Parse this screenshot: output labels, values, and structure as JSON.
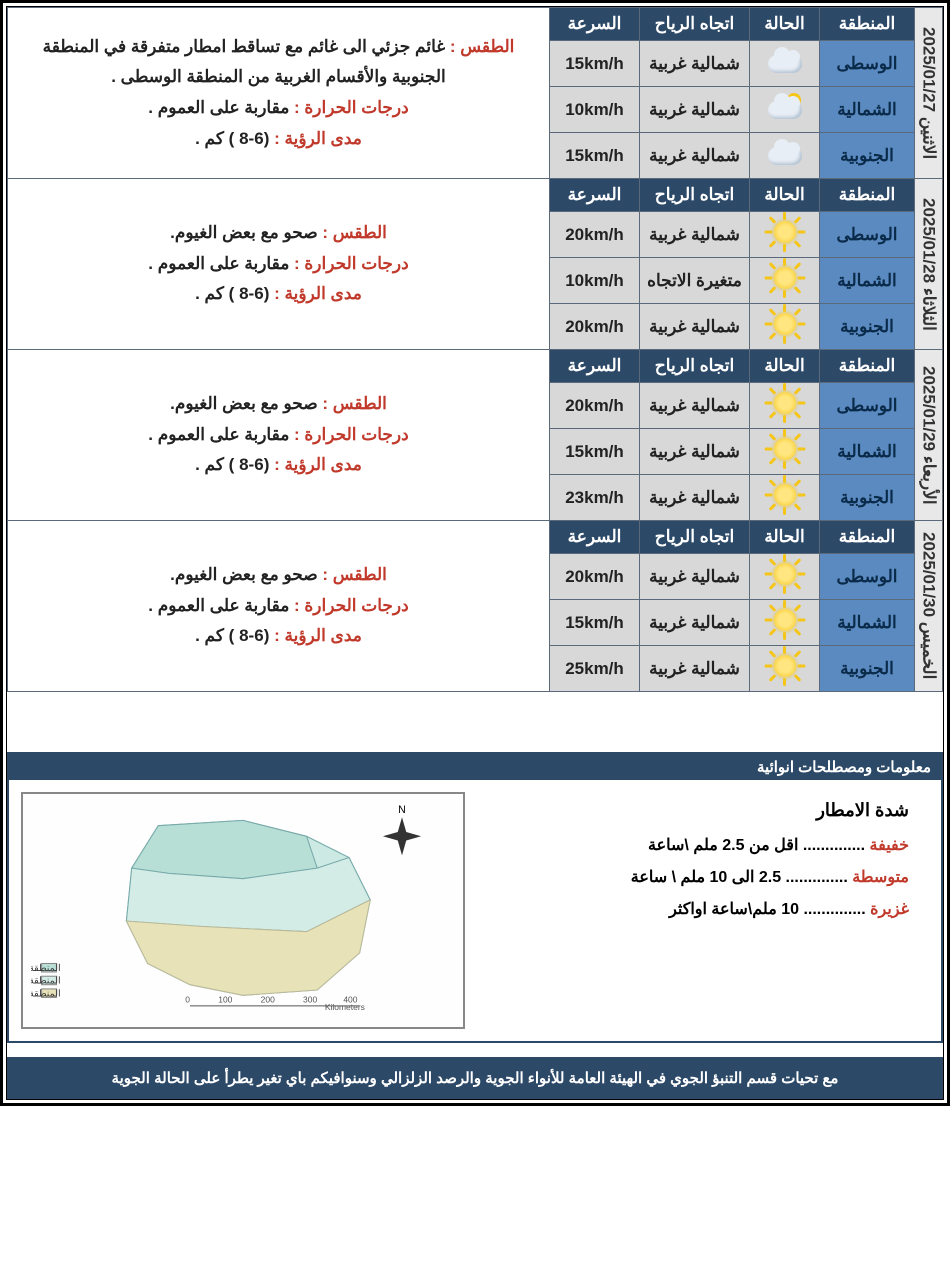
{
  "colors": {
    "header_bg": "#2c4968",
    "header_text": "#ffffff",
    "region_bg": "#5a8abf",
    "region_text": "#0a2a4a",
    "data_bg": "#d8d8d8",
    "label_red": "#c0392b",
    "border": "#5a6a7a"
  },
  "table_headers": {
    "region": "المنطقة",
    "condition": "الحالة",
    "wind_dir": "اتجاه الرياح",
    "speed": "السرعة"
  },
  "desc_labels": {
    "weather": "الطقس :",
    "temp": "درجات الحرارة :",
    "visibility": "مدى الرؤية :"
  },
  "days": [
    {
      "date_label": "الاثنين 2025/01/27",
      "rows": [
        {
          "region": "الوسطى",
          "icon": "cloud",
          "wind": "شمالية غربية",
          "speed": "15km/h"
        },
        {
          "region": "الشمالية",
          "icon": "partly",
          "wind": "شمالية غربية",
          "speed": "10km/h"
        },
        {
          "region": "الجنوبية",
          "icon": "cloud",
          "wind": "شمالية غربية",
          "speed": "15km/h"
        }
      ],
      "weather": "غائم جزئي الى غائم  مع تساقط امطار متفرقة في المنطقة الجنوبية والأقسام الغربية من المنطقة الوسطى .",
      "temp": "مقاربة على العموم .",
      "visibility": "(6-8 ) كم ."
    },
    {
      "date_label": "الثلاثاء 2025/01/28",
      "rows": [
        {
          "region": "الوسطى",
          "icon": "sun",
          "wind": "شمالية غربية",
          "speed": "20km/h"
        },
        {
          "region": "الشمالية",
          "icon": "sun",
          "wind": "متغيرة الاتجاه",
          "speed": "10km/h"
        },
        {
          "region": "الجنوبية",
          "icon": "sun",
          "wind": "شمالية غربية",
          "speed": "20km/h"
        }
      ],
      "weather": "صحو مع بعض الغيوم.",
      "temp": "مقاربة على العموم .",
      "visibility": "(6-8 ) كم ."
    },
    {
      "date_label": "الأربعاء 2025/01/29",
      "rows": [
        {
          "region": "الوسطى",
          "icon": "sun",
          "wind": "شمالية غربية",
          "speed": "20km/h"
        },
        {
          "region": "الشمالية",
          "icon": "sun",
          "wind": "شمالية غربية",
          "speed": "15km/h"
        },
        {
          "region": "الجنوبية",
          "icon": "sun",
          "wind": "شمالية غربية",
          "speed": "23km/h"
        }
      ],
      "weather": "صحو مع بعض الغيوم.",
      "temp": "مقاربة على العموم .",
      "visibility": "(6-8 ) كم ."
    },
    {
      "date_label": "الخميس 2025/01/30",
      "rows": [
        {
          "region": "الوسطى",
          "icon": "sun",
          "wind": "شمالية غربية",
          "speed": "20km/h"
        },
        {
          "region": "الشمالية",
          "icon": "sun",
          "wind": "شمالية غربية",
          "speed": "15km/h"
        },
        {
          "region": "الجنوبية",
          "icon": "sun",
          "wind": "شمالية غربية",
          "speed": "25km/h"
        }
      ],
      "weather": "صحو مع بعض الغيوم.",
      "temp": "مقاربة  على العموم .",
      "visibility": "(6-8 ) كم ."
    }
  ],
  "info": {
    "header": "معلومات ومصطلحات انوائية",
    "rain_title": "شدة الامطار",
    "rain_levels": [
      {
        "label": "خفيفة",
        "dots": " .............. ",
        "value": "اقل من 2.5  ملم \\ساعة"
      },
      {
        "label": "متوسطة",
        "dots": " .............. ",
        "value": "2.5 الى 10 ملم \\ ساعة"
      },
      {
        "label": "غزيرة",
        "dots": " .............. ",
        "value": "10 ملم\\ساعة اواكثر"
      }
    ],
    "map_legend": [
      "المنطقة الشمالية",
      "المنطقة الوسطى",
      "المنطقة الجنوبية"
    ]
  },
  "footer": "مع تحيات قسم التنبؤ الجوي في الهيئة العامة للأنواء الجوية والرصد الزلزالي وسنوافيكم  باي تغير يطرأ على الحالة الجوية"
}
